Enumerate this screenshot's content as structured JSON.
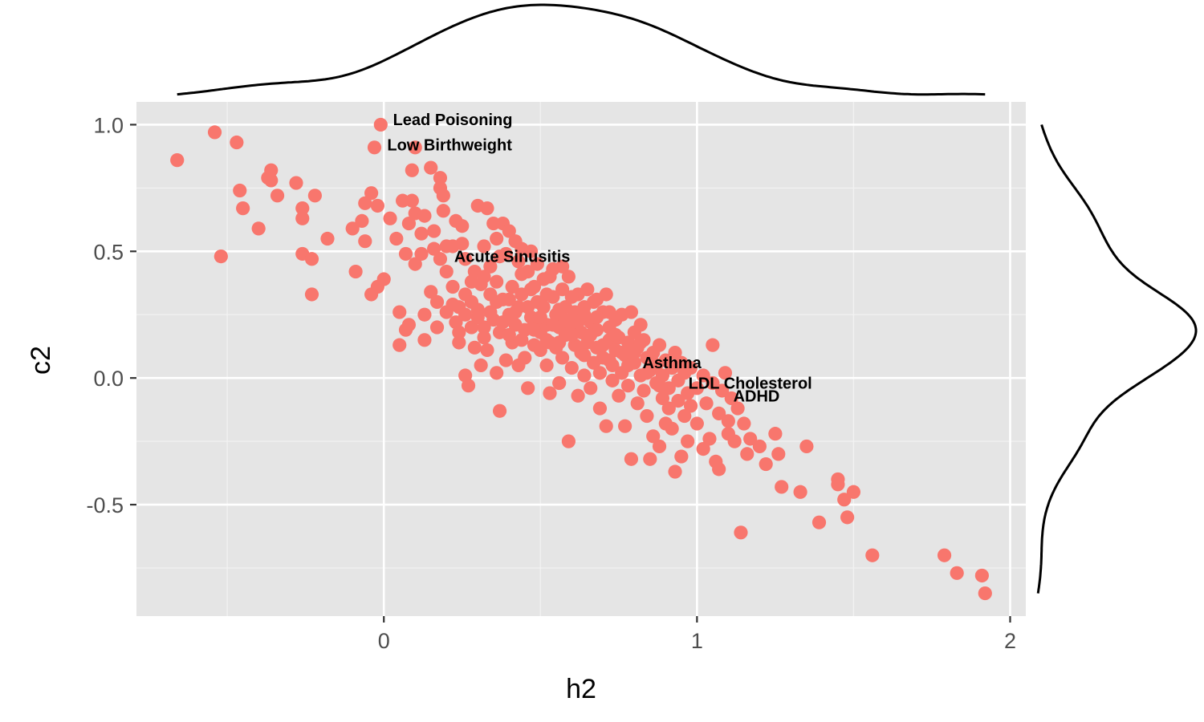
{
  "chart_data": {
    "type": "scatter",
    "title": "",
    "xlabel": "h2",
    "ylabel": "c2",
    "xlim": [
      -0.79,
      2.05
    ],
    "ylim": [
      -0.94,
      1.09
    ],
    "x_ticks": [
      0,
      1,
      2
    ],
    "x_tick_labels": [
      "0",
      "1",
      "2"
    ],
    "y_ticks": [
      1.0,
      0.5,
      0.0,
      -0.5
    ],
    "y_tick_labels": [
      "1.0",
      "0.5",
      "0.0",
      "-0.5"
    ],
    "x_minor_ticks": [
      -0.5,
      0.5,
      1.5
    ],
    "y_minor_ticks": [
      0.75,
      0.25,
      -0.25,
      -0.75
    ],
    "grid": true,
    "panel_background": "#e5e5e5",
    "point_color": "#f8766d",
    "marginal_x_density": true,
    "marginal_y_density": true,
    "annotations": [
      {
        "label": "Lead Poisoning",
        "x": 0.22,
        "y": 1.02
      },
      {
        "label": "Low Birthweight",
        "x": 0.21,
        "y": 0.92
      },
      {
        "label": "Acute Sinusitis",
        "x": 0.41,
        "y": 0.48
      },
      {
        "label": "Asthma",
        "x": 0.92,
        "y": 0.06
      },
      {
        "label": "LDL Cholesterol",
        "x": 1.17,
        "y": -0.02
      },
      {
        "label": "ADHD",
        "x": 1.19,
        "y": -0.07
      }
    ],
    "points": [
      [
        -0.66,
        0.86
      ],
      [
        -0.54,
        0.97
      ],
      [
        -0.47,
        0.93
      ],
      [
        -0.52,
        0.48
      ],
      [
        -0.46,
        0.74
      ],
      [
        -0.45,
        0.67
      ],
      [
        -0.4,
        0.59
      ],
      [
        -0.37,
        0.79
      ],
      [
        -0.36,
        0.78
      ],
      [
        -0.36,
        0.82
      ],
      [
        -0.34,
        0.72
      ],
      [
        -0.28,
        0.77
      ],
      [
        -0.26,
        0.63
      ],
      [
        -0.26,
        0.67
      ],
      [
        -0.26,
        0.49
      ],
      [
        -0.23,
        0.47
      ],
      [
        -0.23,
        0.33
      ],
      [
        -0.22,
        0.72
      ],
      [
        -0.18,
        0.55
      ],
      [
        -0.1,
        0.59
      ],
      [
        -0.09,
        0.42
      ],
      [
        -0.07,
        0.62
      ],
      [
        -0.06,
        0.54
      ],
      [
        -0.06,
        0.69
      ],
      [
        -0.04,
        0.73
      ],
      [
        -0.04,
        0.33
      ],
      [
        -0.03,
        0.91
      ],
      [
        -0.02,
        0.36
      ],
      [
        -0.02,
        0.68
      ],
      [
        -0.01,
        1.0
      ],
      [
        0.0,
        0.39
      ],
      [
        0.02,
        0.63
      ],
      [
        0.04,
        0.55
      ],
      [
        0.05,
        0.26
      ],
      [
        0.05,
        0.13
      ],
      [
        0.06,
        0.7
      ],
      [
        0.07,
        0.49
      ],
      [
        0.07,
        0.19
      ],
      [
        0.08,
        0.61
      ],
      [
        0.08,
        0.21
      ],
      [
        0.09,
        0.7
      ],
      [
        0.09,
        0.82
      ],
      [
        0.1,
        0.91
      ],
      [
        0.1,
        0.65
      ],
      [
        0.1,
        0.45
      ],
      [
        0.12,
        0.57
      ],
      [
        0.12,
        0.49
      ],
      [
        0.13,
        0.64
      ],
      [
        0.13,
        0.25
      ],
      [
        0.13,
        0.15
      ],
      [
        0.15,
        0.83
      ],
      [
        0.15,
        0.34
      ],
      [
        0.16,
        0.58
      ],
      [
        0.16,
        0.51
      ],
      [
        0.17,
        0.2
      ],
      [
        0.17,
        0.3
      ],
      [
        0.18,
        0.79
      ],
      [
        0.18,
        0.75
      ],
      [
        0.18,
        0.47
      ],
      [
        0.19,
        0.72
      ],
      [
        0.19,
        0.66
      ],
      [
        0.2,
        0.52
      ],
      [
        0.2,
        0.42
      ],
      [
        0.2,
        0.26
      ],
      [
        0.22,
        0.52
      ],
      [
        0.22,
        0.36
      ],
      [
        0.23,
        0.62
      ],
      [
        0.23,
        0.22
      ],
      [
        0.24,
        0.28
      ],
      [
        0.24,
        0.14
      ],
      [
        0.25,
        0.6
      ],
      [
        0.25,
        0.53
      ],
      [
        0.26,
        0.47
      ],
      [
        0.26,
        0.33
      ],
      [
        0.26,
        0.01
      ],
      [
        0.27,
        -0.03
      ],
      [
        0.28,
        0.3
      ],
      [
        0.28,
        0.2
      ],
      [
        0.29,
        0.42
      ],
      [
        0.29,
        0.12
      ],
      [
        0.3,
        0.68
      ],
      [
        0.3,
        0.27
      ],
      [
        0.31,
        0.37
      ],
      [
        0.31,
        0.05
      ],
      [
        0.32,
        0.2
      ],
      [
        0.32,
        0.4
      ],
      [
        0.33,
        0.67
      ],
      [
        0.33,
        0.11
      ],
      [
        0.34,
        0.33
      ],
      [
        0.34,
        0.44
      ],
      [
        0.35,
        0.61
      ],
      [
        0.35,
        0.23
      ],
      [
        0.36,
        0.55
      ],
      [
        0.36,
        0.02
      ],
      [
        0.37,
        -0.13
      ],
      [
        0.37,
        0.18
      ],
      [
        0.38,
        0.61
      ],
      [
        0.38,
        0.31
      ],
      [
        0.39,
        0.49
      ],
      [
        0.39,
        0.07
      ],
      [
        0.4,
        0.58
      ],
      [
        0.4,
        0.25
      ],
      [
        0.41,
        0.36
      ],
      [
        0.41,
        0.14
      ],
      [
        0.42,
        0.54
      ],
      [
        0.42,
        0.21
      ],
      [
        0.43,
        0.28
      ],
      [
        0.43,
        0.05
      ],
      [
        0.44,
        0.51
      ],
      [
        0.44,
        0.33
      ],
      [
        0.45,
        0.19
      ],
      [
        0.45,
        0.08
      ],
      [
        0.46,
        0.42
      ],
      [
        0.46,
        -0.04
      ],
      [
        0.47,
        0.24
      ],
      [
        0.47,
        0.35
      ],
      [
        0.48,
        0.13
      ],
      [
        0.48,
        0.22
      ],
      [
        0.49,
        0.3
      ],
      [
        0.49,
        0.45
      ],
      [
        0.5,
        0.11
      ],
      [
        0.5,
        0.18
      ],
      [
        0.51,
        0.28
      ],
      [
        0.51,
        0.39
      ],
      [
        0.52,
        0.05
      ],
      [
        0.52,
        0.21
      ],
      [
        0.53,
        0.14
      ],
      [
        0.53,
        -0.06
      ],
      [
        0.54,
        0.32
      ],
      [
        0.54,
        0.43
      ],
      [
        0.55,
        0.25
      ],
      [
        0.55,
        0.12
      ],
      [
        0.56,
        -0.02
      ],
      [
        0.56,
        0.2
      ],
      [
        0.57,
        0.35
      ],
      [
        0.57,
        0.08
      ],
      [
        0.58,
        0.28
      ],
      [
        0.58,
        0.17
      ],
      [
        0.59,
        0.4
      ],
      [
        0.59,
        -0.25
      ],
      [
        0.6,
        0.21
      ],
      [
        0.6,
        0.04
      ],
      [
        0.61,
        0.13
      ],
      [
        0.61,
        0.26
      ],
      [
        0.62,
        0.33
      ],
      [
        0.62,
        -0.07
      ],
      [
        0.63,
        0.18
      ],
      [
        0.63,
        0.1
      ],
      [
        0.64,
        0.01
      ],
      [
        0.64,
        0.28
      ],
      [
        0.65,
        0.35
      ],
      [
        0.65,
        0.14
      ],
      [
        0.66,
        0.22
      ],
      [
        0.66,
        -0.04
      ],
      [
        0.67,
        0.06
      ],
      [
        0.67,
        0.3
      ],
      [
        0.68,
        0.12
      ],
      [
        0.68,
        0.19
      ],
      [
        0.69,
        -0.12
      ],
      [
        0.69,
        0.02
      ],
      [
        0.7,
        0.26
      ],
      [
        0.7,
        0.08
      ],
      [
        0.71,
        0.33
      ],
      [
        0.71,
        -0.19
      ],
      [
        0.72,
        0.15
      ],
      [
        0.72,
        0.2
      ],
      [
        0.73,
        0.05
      ],
      [
        0.73,
        -0.01
      ],
      [
        0.74,
        0.23
      ],
      [
        0.74,
        0.11
      ],
      [
        0.75,
        -0.07
      ],
      [
        0.75,
        0.16
      ],
      [
        0.76,
        0.02
      ],
      [
        0.76,
        0.25
      ],
      [
        0.77,
        -0.19
      ],
      [
        0.77,
        0.09
      ],
      [
        0.78,
        0.14
      ],
      [
        0.78,
        -0.03
      ],
      [
        0.79,
        0.26
      ],
      [
        0.79,
        -0.32
      ],
      [
        0.8,
        0.06
      ],
      [
        0.8,
        0.18
      ],
      [
        0.81,
        -0.1
      ],
      [
        0.81,
        0.12
      ],
      [
        0.82,
        0.01
      ],
      [
        0.82,
        0.21
      ],
      [
        0.83,
        -0.05
      ],
      [
        0.83,
        0.15
      ],
      [
        0.84,
        0.08
      ],
      [
        0.84,
        -0.15
      ],
      [
        0.85,
        -0.32
      ],
      [
        0.85,
        0.03
      ],
      [
        0.86,
        -0.23
      ],
      [
        0.86,
        0.1
      ],
      [
        0.87,
        -0.02
      ],
      [
        0.87,
        0.05
      ],
      [
        0.88,
        -0.27
      ],
      [
        0.88,
        0.13
      ],
      [
        0.89,
        -0.08
      ],
      [
        0.89,
        0.01
      ],
      [
        0.9,
        -0.18
      ],
      [
        0.9,
        0.07
      ],
      [
        0.91,
        -0.12
      ],
      [
        0.91,
        -0.04
      ],
      [
        0.92,
        0.04
      ],
      [
        0.92,
        -0.2
      ],
      [
        0.93,
        -0.37
      ],
      [
        0.93,
        0.1
      ],
      [
        0.94,
        -0.09
      ],
      [
        0.94,
        -0.01
      ],
      [
        0.95,
        -0.31
      ],
      [
        0.95,
        0.06
      ],
      [
        0.96,
        -0.15
      ],
      [
        0.96,
        0.02
      ],
      [
        0.97,
        -0.25
      ],
      [
        0.97,
        -0.06
      ],
      [
        0.98,
        0.04
      ],
      [
        0.98,
        -0.11
      ],
      [
        1.0,
        -0.04
      ],
      [
        1.0,
        -0.18
      ],
      [
        1.02,
        -0.28
      ],
      [
        1.02,
        0.01
      ],
      [
        1.03,
        -0.1
      ],
      [
        1.04,
        -0.24
      ],
      [
        1.05,
        0.13
      ],
      [
        1.05,
        -0.02
      ],
      [
        1.06,
        -0.33
      ],
      [
        1.07,
        -0.36
      ],
      [
        1.07,
        -0.14
      ],
      [
        1.08,
        -0.05
      ],
      [
        1.09,
        0.02
      ],
      [
        1.1,
        -0.22
      ],
      [
        1.1,
        -0.17
      ],
      [
        1.11,
        -0.08
      ],
      [
        1.12,
        -0.25
      ],
      [
        1.13,
        -0.12
      ],
      [
        1.14,
        -0.61
      ],
      [
        1.15,
        -0.18
      ],
      [
        1.16,
        -0.3
      ],
      [
        1.17,
        -0.24
      ],
      [
        1.2,
        -0.27
      ],
      [
        1.22,
        -0.34
      ],
      [
        1.25,
        -0.22
      ],
      [
        1.26,
        -0.3
      ],
      [
        1.27,
        -0.43
      ],
      [
        1.33,
        -0.45
      ],
      [
        1.35,
        -0.27
      ],
      [
        1.39,
        -0.57
      ],
      [
        1.45,
        -0.4
      ],
      [
        1.45,
        -0.42
      ],
      [
        1.47,
        -0.48
      ],
      [
        1.48,
        -0.55
      ],
      [
        1.5,
        -0.45
      ],
      [
        1.56,
        -0.7
      ],
      [
        1.79,
        -0.7
      ],
      [
        1.83,
        -0.77
      ],
      [
        1.91,
        -0.78
      ],
      [
        1.92,
        -0.85
      ],
      [
        0.3,
        0.24
      ],
      [
        0.32,
        0.16
      ],
      [
        0.34,
        0.26
      ],
      [
        0.36,
        0.3
      ],
      [
        0.38,
        0.22
      ],
      [
        0.4,
        0.17
      ],
      [
        0.42,
        0.26
      ],
      [
        0.44,
        0.15
      ],
      [
        0.46,
        0.28
      ],
      [
        0.48,
        0.19
      ],
      [
        0.5,
        0.24
      ],
      [
        0.52,
        0.15
      ],
      [
        0.54,
        0.21
      ],
      [
        0.56,
        0.14
      ],
      [
        0.58,
        0.23
      ],
      [
        0.6,
        0.17
      ],
      [
        0.62,
        0.22
      ],
      [
        0.64,
        0.09
      ],
      [
        0.66,
        0.17
      ],
      [
        0.68,
        0.24
      ],
      [
        0.7,
        0.13
      ],
      [
        0.72,
        0.07
      ],
      [
        0.74,
        0.17
      ],
      [
        0.76,
        0.1
      ],
      [
        0.78,
        0.05
      ],
      [
        0.8,
        0.1
      ],
      [
        0.82,
        0.14
      ],
      [
        0.84,
        0.02
      ],
      [
        0.86,
        0.06
      ],
      [
        0.88,
        -0.03
      ],
      [
        0.36,
        0.38
      ],
      [
        0.4,
        0.31
      ],
      [
        0.44,
        0.41
      ],
      [
        0.48,
        0.36
      ],
      [
        0.52,
        0.33
      ],
      [
        0.56,
        0.27
      ],
      [
        0.6,
        0.32
      ],
      [
        0.64,
        0.25
      ],
      [
        0.68,
        0.31
      ],
      [
        0.72,
        0.26
      ],
      [
        0.28,
        0.38
      ],
      [
        0.26,
        0.25
      ],
      [
        0.24,
        0.18
      ],
      [
        0.22,
        0.29
      ],
      [
        0.32,
        0.52
      ],
      [
        0.37,
        0.48
      ],
      [
        0.43,
        0.46
      ],
      [
        0.47,
        0.5
      ],
      [
        0.53,
        0.4
      ],
      [
        0.57,
        0.44
      ]
    ]
  }
}
